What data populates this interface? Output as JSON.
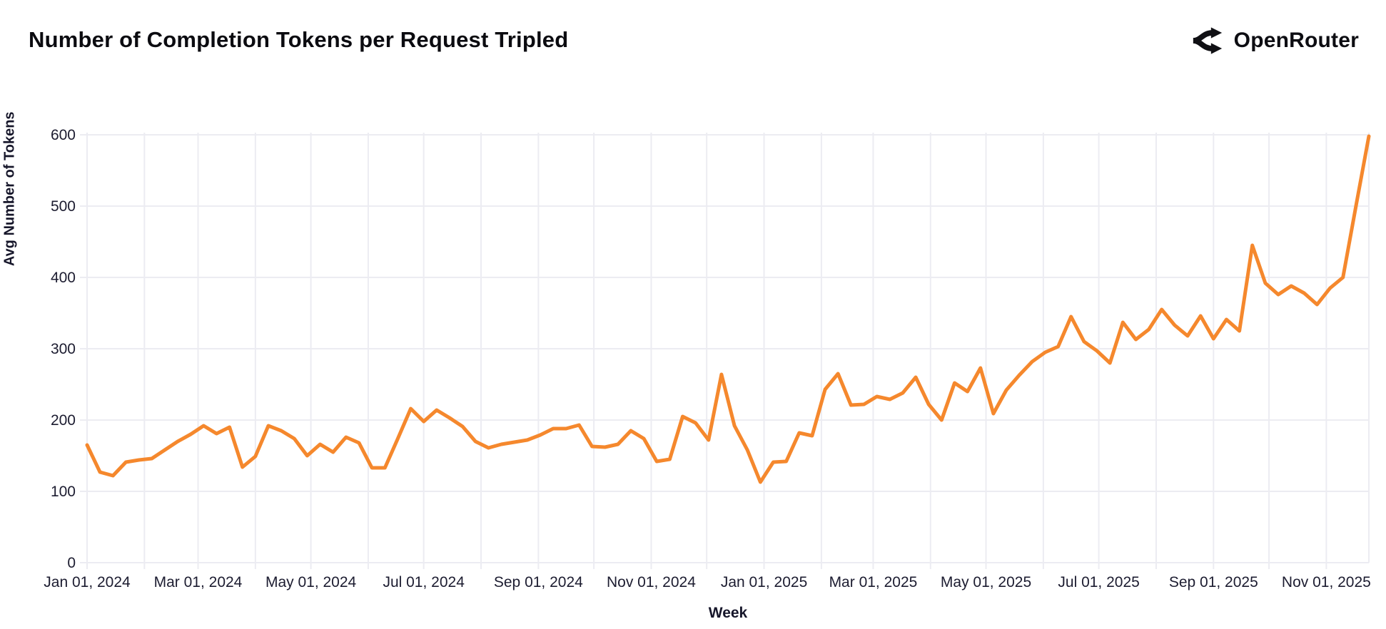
{
  "header": {
    "title": "Number of Completion Tokens per Request Tripled",
    "brand": {
      "name": "OpenRouter",
      "icon": "openrouter-logo-icon"
    }
  },
  "colors": {
    "line": "#F5882D",
    "grid": "#ECECF2",
    "tick_text": "#1C1C30",
    "title_text": "#0B0B10"
  },
  "chart_data": {
    "type": "line",
    "title": "Number of Completion Tokens per Request Tripled",
    "xlabel": "Week",
    "ylabel": "Avg Number of Tokens",
    "ylim": [
      0,
      600
    ],
    "yticks": [
      0,
      100,
      200,
      300,
      400,
      500,
      600
    ],
    "grid": true,
    "legend": false,
    "series_name": "Avg Number of Tokens per Request",
    "x_ticks": [
      {
        "date": "2024-01-01",
        "label": "Jan 01, 2024"
      },
      {
        "date": "2024-03-01",
        "label": "Mar 01, 2024"
      },
      {
        "date": "2024-05-01",
        "label": "May 01, 2024"
      },
      {
        "date": "2024-07-01",
        "label": "Jul 01, 2024"
      },
      {
        "date": "2024-09-01",
        "label": "Sep 01, 2024"
      },
      {
        "date": "2024-11-01",
        "label": "Nov 01, 2024"
      },
      {
        "date": "2025-01-01",
        "label": "Jan 01, 2025"
      },
      {
        "date": "2025-03-01",
        "label": "Mar 01, 2025"
      },
      {
        "date": "2025-05-01",
        "label": "May 01, 2025"
      },
      {
        "date": "2025-07-01",
        "label": "Jul 01, 2025"
      },
      {
        "date": "2025-09-01",
        "label": "Sep 01, 2025"
      },
      {
        "date": "2025-11-01",
        "label": "Nov 01, 2025"
      }
    ],
    "x": [
      "2024-01-01",
      "2024-01-08",
      "2024-01-15",
      "2024-01-22",
      "2024-01-29",
      "2024-02-05",
      "2024-02-12",
      "2024-02-19",
      "2024-02-26",
      "2024-03-04",
      "2024-03-11",
      "2024-03-18",
      "2024-03-25",
      "2024-04-01",
      "2024-04-08",
      "2024-04-15",
      "2024-04-22",
      "2024-04-29",
      "2024-05-06",
      "2024-05-13",
      "2024-05-20",
      "2024-05-27",
      "2024-06-03",
      "2024-06-10",
      "2024-06-17",
      "2024-06-24",
      "2024-07-01",
      "2024-07-08",
      "2024-07-15",
      "2024-07-22",
      "2024-07-29",
      "2024-08-05",
      "2024-08-12",
      "2024-08-19",
      "2024-08-26",
      "2024-09-02",
      "2024-09-09",
      "2024-09-16",
      "2024-09-23",
      "2024-09-30",
      "2024-10-07",
      "2024-10-14",
      "2024-10-21",
      "2024-10-28",
      "2024-11-04",
      "2024-11-11",
      "2024-11-18",
      "2024-11-25",
      "2024-12-02",
      "2024-12-09",
      "2024-12-16",
      "2024-12-23",
      "2024-12-30",
      "2025-01-06",
      "2025-01-13",
      "2025-01-20",
      "2025-01-27",
      "2025-02-03",
      "2025-02-10",
      "2025-02-17",
      "2025-02-24",
      "2025-03-03",
      "2025-03-10",
      "2025-03-17",
      "2025-03-24",
      "2025-03-31",
      "2025-04-07",
      "2025-04-14",
      "2025-04-21",
      "2025-04-28",
      "2025-05-05",
      "2025-05-12",
      "2025-05-19",
      "2025-05-26",
      "2025-06-02",
      "2025-06-09",
      "2025-06-16",
      "2025-06-23",
      "2025-06-30",
      "2025-07-07",
      "2025-07-14",
      "2025-07-21",
      "2025-07-28",
      "2025-08-04",
      "2025-08-11",
      "2025-08-18",
      "2025-08-25",
      "2025-09-01",
      "2025-09-08",
      "2025-09-15",
      "2025-09-22",
      "2025-09-29",
      "2025-10-06",
      "2025-10-13",
      "2025-10-20",
      "2025-10-27",
      "2025-11-03",
      "2025-11-10",
      "2025-11-17",
      "2025-11-24"
    ],
    "values": [
      165,
      127,
      122,
      141,
      144,
      146,
      158,
      170,
      180,
      192,
      181,
      190,
      134,
      149,
      192,
      185,
      174,
      150,
      166,
      155,
      176,
      168,
      133,
      133,
      174,
      216,
      198,
      214,
      203,
      191,
      170,
      161,
      166,
      169,
      172,
      179,
      188,
      188,
      193,
      163,
      162,
      166,
      185,
      174,
      142,
      145,
      205,
      196,
      172,
      264,
      192,
      158,
      113,
      141,
      142,
      182,
      178,
      243,
      265,
      221,
      222,
      233,
      229,
      238,
      260,
      222,
      200,
      252,
      240,
      273,
      209,
      242,
      263,
      282,
      295,
      303,
      345,
      310,
      297,
      280,
      337,
      313,
      327,
      355,
      333,
      318,
      346,
      314,
      341,
      325,
      445,
      392,
      376,
      388,
      378,
      362,
      385,
      400,
      500,
      598
    ]
  }
}
